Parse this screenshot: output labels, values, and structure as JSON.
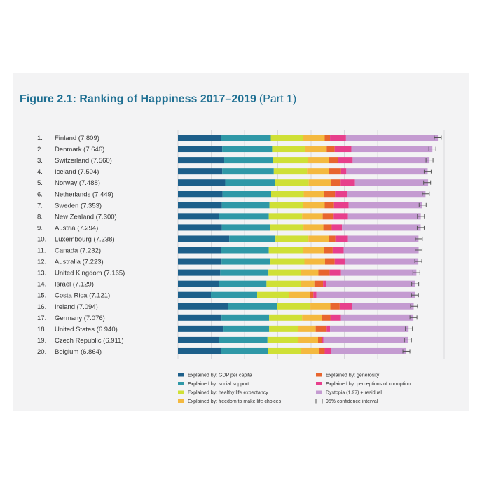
{
  "figure": {
    "title": "Figure 2.1: Ranking of Happiness 2017–2019",
    "part": "(Part 1)"
  },
  "chart_data": {
    "type": "bar",
    "orientation": "horizontal",
    "stacked": true,
    "title": "Figure 2.1: Ranking of Happiness 2017–2019 (Part 1)",
    "xlim": [
      0,
      8
    ],
    "grid": true,
    "legend_position": "bottom",
    "categories": [
      "Finland (7.809)",
      "Denmark (7.646)",
      "Switzerland (7.560)",
      "Iceland (7.504)",
      "Norway (7.488)",
      "Netherlands (7.449)",
      "Sweden (7.353)",
      "New Zealand (7.300)",
      "Austria (7.294)",
      "Luxembourg (7.238)",
      "Canada (7.232)",
      "Australia (7.223)",
      "United Kingdom (7.165)",
      "Israel (7.129)",
      "Costa Rica (7.121)",
      "Ireland (7.094)",
      "Germany (7.076)",
      "United States (6.940)",
      "Czech Republic (6.911)",
      "Belgium (6.864)"
    ],
    "ranks": [
      "1.",
      "2.",
      "3.",
      "4.",
      "5.",
      "6.",
      "7.",
      "8.",
      "9.",
      "10.",
      "11.",
      "12.",
      "13.",
      "14.",
      "15.",
      "16.",
      "17.",
      "18.",
      "19.",
      "20."
    ],
    "totals": [
      7.809,
      7.646,
      7.56,
      7.504,
      7.488,
      7.449,
      7.353,
      7.3,
      7.294,
      7.238,
      7.232,
      7.223,
      7.165,
      7.129,
      7.121,
      7.094,
      7.076,
      6.94,
      6.911,
      6.864
    ],
    "series": [
      {
        "name": "Explained by: GDP per capita",
        "color": "#1d5f8a",
        "values": [
          1.29,
          1.33,
          1.39,
          1.33,
          1.42,
          1.34,
          1.32,
          1.24,
          1.32,
          1.54,
          1.3,
          1.31,
          1.27,
          1.23,
          0.99,
          1.5,
          1.31,
          1.37,
          1.23,
          1.29
        ]
      },
      {
        "name": "Explained by: social support",
        "color": "#2f98a7",
        "values": [
          1.5,
          1.5,
          1.47,
          1.55,
          1.5,
          1.46,
          1.43,
          1.49,
          1.44,
          1.39,
          1.43,
          1.47,
          1.45,
          1.43,
          1.39,
          1.49,
          1.43,
          1.37,
          1.46,
          1.42
        ]
      },
      {
        "name": "Explained by: healthy life expectancy",
        "color": "#cfe036",
        "values": [
          0.96,
          0.98,
          1.04,
          1.0,
          1.01,
          0.98,
          1.0,
          1.0,
          1.01,
          0.99,
          1.03,
          1.02,
          0.98,
          1.04,
          0.96,
          0.99,
          0.99,
          0.88,
          0.93,
          0.98
        ]
      },
      {
        "name": "Explained by: freedom to make life choices",
        "color": "#f4b93f",
        "values": [
          0.66,
          0.66,
          0.63,
          0.66,
          0.67,
          0.61,
          0.66,
          0.62,
          0.6,
          0.61,
          0.63,
          0.62,
          0.52,
          0.4,
          0.63,
          0.6,
          0.59,
          0.52,
          0.59,
          0.56
        ]
      },
      {
        "name": "Explained by: generosity",
        "color": "#e8652e",
        "values": [
          0.16,
          0.24,
          0.27,
          0.36,
          0.29,
          0.33,
          0.28,
          0.33,
          0.25,
          0.2,
          0.26,
          0.29,
          0.34,
          0.26,
          0.1,
          0.28,
          0.26,
          0.33,
          0.12,
          0.16
        ]
      },
      {
        "name": "Explained by: perceptions of corruption",
        "color": "#e73f8c",
        "values": [
          0.48,
          0.5,
          0.45,
          0.16,
          0.43,
          0.36,
          0.44,
          0.43,
          0.31,
          0.38,
          0.33,
          0.3,
          0.34,
          0.09,
          0.09,
          0.38,
          0.32,
          0.1,
          0.04,
          0.2
        ]
      },
      {
        "name": "Dystopia (1.97) + residual",
        "color": "#c49bd1",
        "values": [
          2.762,
          2.436,
          2.31,
          2.444,
          2.198,
          2.359,
          2.213,
          2.187,
          2.364,
          2.118,
          2.252,
          2.213,
          2.265,
          2.679,
          2.961,
          1.844,
          2.176,
          2.36,
          2.551,
          2.254
        ]
      }
    ],
    "confidence_interval_label": "95% confidence interval",
    "legend": [
      "Explained by: GDP per capita",
      "Explained by: generosity",
      "Explained by: social support",
      "Explained by: perceptions of corruption",
      "Explained by: healthy life expectancy",
      "Dystopia (1.97) + residual",
      "Explained by: freedom to make life choices",
      "95% confidence interval"
    ]
  }
}
